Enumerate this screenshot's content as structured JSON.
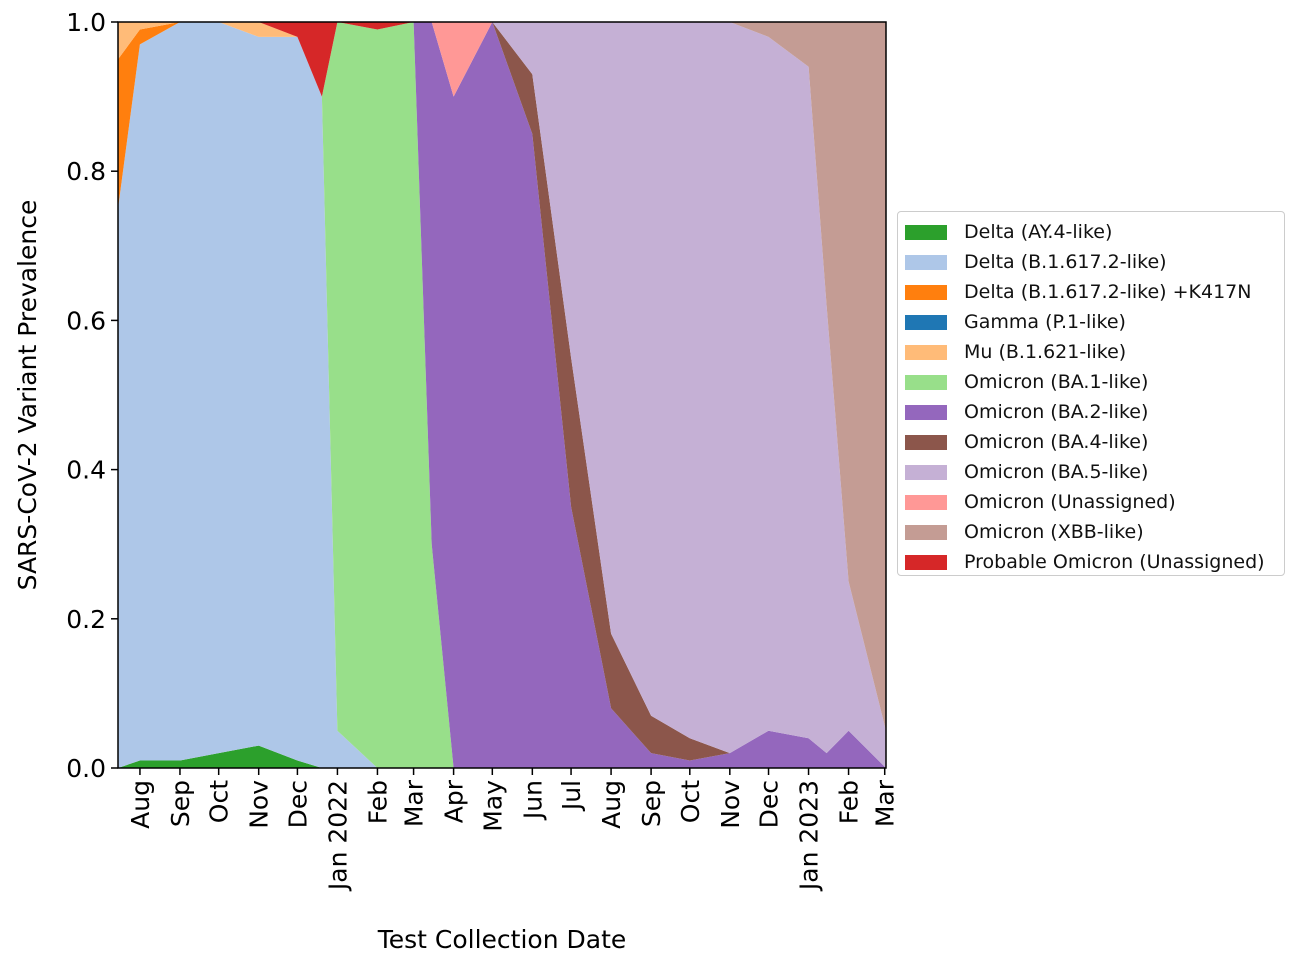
{
  "chart_data": {
    "type": "area",
    "stacked": true,
    "normalized": true,
    "title": "",
    "xlabel": "Test Collection Date",
    "ylabel": "SARS-CoV-2 Variant Prevalence",
    "xlim": [
      "2021-07-15",
      "2023-03-02"
    ],
    "ylim": [
      0.0,
      1.0
    ],
    "grid": false,
    "legend_position": "outside-right",
    "x_ticks": [
      {
        "date": "2021-08-01",
        "label": "Aug"
      },
      {
        "date": "2021-09-01",
        "label": "Sep"
      },
      {
        "date": "2021-10-01",
        "label": "Oct"
      },
      {
        "date": "2021-11-01",
        "label": "Nov"
      },
      {
        "date": "2021-12-01",
        "label": "Dec"
      },
      {
        "date": "2022-01-01",
        "label": "Jan 2022"
      },
      {
        "date": "2022-02-01",
        "label": "Feb"
      },
      {
        "date": "2022-03-01",
        "label": "Mar"
      },
      {
        "date": "2022-04-01",
        "label": "Apr"
      },
      {
        "date": "2022-05-01",
        "label": "May"
      },
      {
        "date": "2022-06-01",
        "label": "Jun"
      },
      {
        "date": "2022-07-01",
        "label": "Jul"
      },
      {
        "date": "2022-08-01",
        "label": "Aug"
      },
      {
        "date": "2022-09-01",
        "label": "Sep"
      },
      {
        "date": "2022-10-01",
        "label": "Oct"
      },
      {
        "date": "2022-11-01",
        "label": "Nov"
      },
      {
        "date": "2022-12-01",
        "label": "Dec"
      },
      {
        "date": "2023-01-01",
        "label": "Jan 2023"
      },
      {
        "date": "2023-02-01",
        "label": "Feb"
      },
      {
        "date": "2023-03-01",
        "label": "Mar"
      }
    ],
    "y_ticks": [
      {
        "value": 0.0,
        "label": "0.0"
      },
      {
        "value": 0.2,
        "label": "0.2"
      },
      {
        "value": 0.4,
        "label": "0.4"
      },
      {
        "value": 0.6,
        "label": "0.6"
      },
      {
        "value": 0.8,
        "label": "0.8"
      },
      {
        "value": 1.0,
        "label": "1.0"
      }
    ],
    "x": [
      "2021-07-15",
      "2021-08-01",
      "2021-09-01",
      "2021-10-01",
      "2021-11-01",
      "2021-12-01",
      "2021-12-20",
      "2022-01-01",
      "2022-02-01",
      "2022-03-01",
      "2022-03-15",
      "2022-04-01",
      "2022-05-01",
      "2022-06-01",
      "2022-07-01",
      "2022-08-01",
      "2022-09-01",
      "2022-10-01",
      "2022-11-01",
      "2022-12-01",
      "2023-01-01",
      "2023-01-15",
      "2023-02-01",
      "2023-03-02"
    ],
    "series": [
      {
        "name": "Delta (AY.4-like)",
        "color": "#2ca02c",
        "values": [
          0,
          0.01,
          0.01,
          0.02,
          0.03,
          0.01,
          0,
          0,
          0,
          0,
          0,
          0,
          0,
          0,
          0,
          0,
          0,
          0,
          0,
          0,
          0,
          0,
          0,
          0
        ]
      },
      {
        "name": "Delta (B.1.617.2-like)",
        "color": "#aec7e8",
        "values": [
          0.75,
          0.96,
          0.99,
          0.98,
          0.95,
          0.97,
          0.9,
          0.05,
          0,
          0,
          0,
          0,
          0,
          0,
          0,
          0,
          0,
          0,
          0,
          0,
          0,
          0,
          0,
          0
        ]
      },
      {
        "name": "Delta (B.1.617.2-like) +K417N",
        "color": "#ff7f0e",
        "values": [
          0.2,
          0.02,
          0,
          0,
          0,
          0,
          0,
          0,
          0,
          0,
          0,
          0,
          0,
          0,
          0,
          0,
          0,
          0,
          0,
          0,
          0,
          0,
          0,
          0
        ]
      },
      {
        "name": "Gamma (P.1-like)",
        "color": "#1f77b4",
        "values": [
          0,
          0,
          0,
          0,
          0,
          0,
          0,
          0,
          0,
          0,
          0,
          0,
          0,
          0,
          0,
          0,
          0,
          0,
          0,
          0,
          0,
          0,
          0,
          0
        ]
      },
      {
        "name": "Mu (B.1.621-like)",
        "color": "#ffbb78",
        "values": [
          0.05,
          0.01,
          0,
          0,
          0.02,
          0,
          0,
          0,
          0,
          0,
          0,
          0,
          0,
          0,
          0,
          0,
          0,
          0,
          0,
          0,
          0,
          0,
          0,
          0
        ]
      },
      {
        "name": "Omicron (BA.1-like)",
        "color": "#98df8a",
        "values": [
          0,
          0,
          0,
          0,
          0,
          0,
          0,
          0.95,
          0.99,
          1.0,
          0.3,
          0,
          0,
          0,
          0,
          0,
          0,
          0,
          0,
          0,
          0,
          0,
          0,
          0
        ]
      },
      {
        "name": "Omicron (BA.2-like)",
        "color": "#9467bd",
        "values": [
          0,
          0,
          0,
          0,
          0,
          0,
          0,
          0,
          0,
          0,
          0.7,
          0.9,
          1.0,
          0.85,
          0.35,
          0.08,
          0.02,
          0.01,
          0.02,
          0.05,
          0.04,
          0.02,
          0.05,
          0
        ]
      },
      {
        "name": "Omicron (BA.4-like)",
        "color": "#8c564b",
        "values": [
          0,
          0,
          0,
          0,
          0,
          0,
          0,
          0,
          0,
          0,
          0,
          0,
          0,
          0.08,
          0.2,
          0.1,
          0.05,
          0.03,
          0,
          0,
          0,
          0,
          0,
          0
        ]
      },
      {
        "name": "Omicron (BA.5-like)",
        "color": "#c5b0d5",
        "values": [
          0,
          0,
          0,
          0,
          0,
          0,
          0,
          0,
          0,
          0,
          0,
          0,
          0,
          0.07,
          0.45,
          0.82,
          0.93,
          0.96,
          0.98,
          0.93,
          0.9,
          0.6,
          0.2,
          0.05
        ]
      },
      {
        "name": "Omicron (Unassigned)",
        "color": "#ff9896",
        "values": [
          0,
          0,
          0,
          0,
          0,
          0,
          0,
          0,
          0,
          0,
          0,
          0.1,
          0,
          0,
          0,
          0,
          0,
          0,
          0,
          0,
          0,
          0,
          0,
          0
        ]
      },
      {
        "name": "Omicron (XBB-like)",
        "color": "#c49c94",
        "values": [
          0,
          0,
          0,
          0,
          0,
          0,
          0,
          0,
          0,
          0,
          0,
          0,
          0,
          0,
          0,
          0,
          0,
          0,
          0,
          0.02,
          0.06,
          0.38,
          0.75,
          0.95
        ]
      },
      {
        "name": "Probable Omicron (Unassigned)",
        "color": "#d62728",
        "values": [
          0,
          0,
          0,
          0,
          0,
          0.02,
          0.1,
          0,
          0.01,
          0,
          0,
          0,
          0,
          0,
          0,
          0,
          0,
          0,
          0,
          0,
          0,
          0,
          0,
          0
        ]
      }
    ]
  }
}
